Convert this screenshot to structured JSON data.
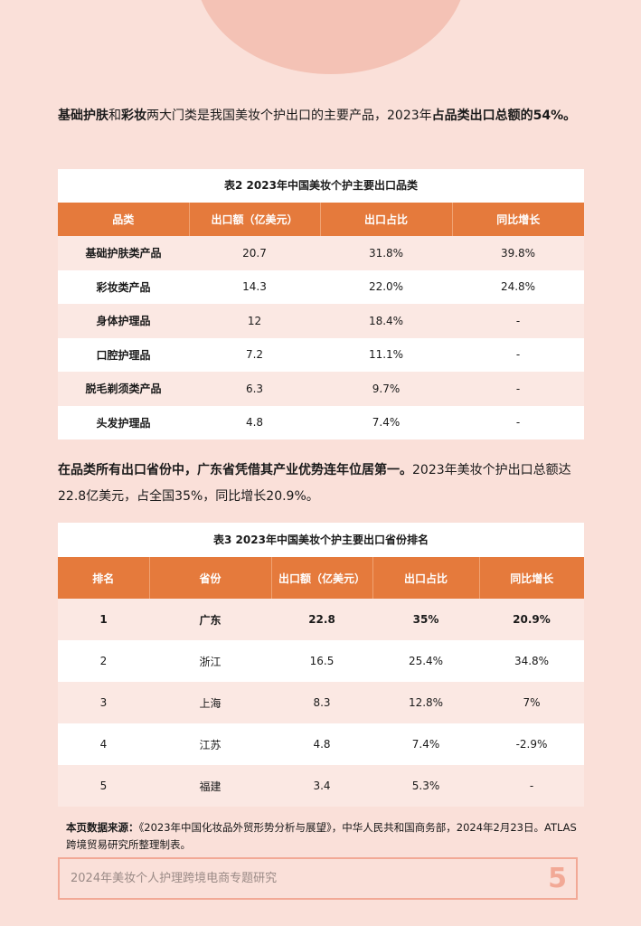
{
  "intro1": {
    "b1": "基础护肤",
    "t1": "和",
    "b2": "彩妆",
    "t2": "两大门类是我国美妆个护出口的主要产品，2023年",
    "b3": "占品类出口总额的54%。"
  },
  "table2": {
    "caption": "表2 2023年中国美妆个护主要出口品类",
    "headers": [
      "品类",
      "出口额（亿美元）",
      "出口占比",
      "同比增长"
    ],
    "rows": [
      [
        "基础护肤类产品",
        "20.7",
        "31.8%",
        "39.8%"
      ],
      [
        "彩妆类产品",
        "14.3",
        "22.0%",
        "24.8%"
      ],
      [
        "身体护理品",
        "12",
        "18.4%",
        "-"
      ],
      [
        "口腔护理品",
        "7.2",
        "11.1%",
        "-"
      ],
      [
        "脱毛剃须类产品",
        "6.3",
        "9.7%",
        "-"
      ],
      [
        "头发护理品",
        "4.8",
        "7.4%",
        "-"
      ]
    ]
  },
  "intro2": {
    "b1": "在品类所有出口省份中，广东省凭借其产业优势连年位居第一。",
    "t1": "2023年美妆个护出口总额达22.8亿美元，占全国35%，同比增长20.9%。"
  },
  "table3": {
    "caption": "表3 2023年中国美妆个护主要出口省份排名",
    "headers": [
      "排名",
      "省份",
      "出口额（亿美元）",
      "出口占比",
      "同比增长"
    ],
    "rows": [
      [
        "1",
        "广东",
        "22.8",
        "35%",
        "20.9%"
      ],
      [
        "2",
        "浙江",
        "16.5",
        "25.4%",
        "34.8%"
      ],
      [
        "3",
        "上海",
        "8.3",
        "12.8%",
        "7%"
      ],
      [
        "4",
        "江苏",
        "4.8",
        "7.4%",
        "-2.9%"
      ],
      [
        "5",
        "福建",
        "3.4",
        "5.3%",
        "-"
      ]
    ]
  },
  "source": {
    "label": "本页数据来源：",
    "text": "《2023年中国化妆品外贸形势分析与展望》，中华人民共和国商务部，2024年2月23日。ATLAS跨境贸易研究所整理制表。"
  },
  "footer": {
    "title": "2024年美妆个人护理跨境电商专题研究",
    "page": "5"
  },
  "colors": {
    "background": "#fae0d9",
    "header_orange": "#e57a3c",
    "accent_pink": "#f2a996"
  }
}
